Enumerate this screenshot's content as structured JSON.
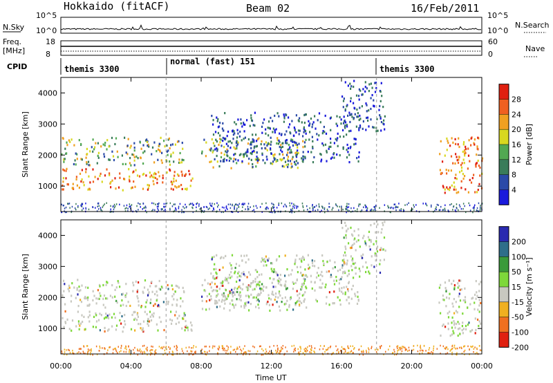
{
  "header": {
    "radar": "Hokkaido (fitACF)",
    "beam": "Beam 02",
    "date": "16/Feb/2011"
  },
  "noise_panel": {
    "left_label": "N.Sky",
    "left_ticks": [
      "10^5",
      "10^0"
    ],
    "right_label": "N.Search",
    "right_ticks": [
      "10^5",
      "10^0"
    ]
  },
  "freq_panel": {
    "left_label_line1": "Freq.",
    "left_label_line2": "[MHz]",
    "left_ticks": [
      "18",
      "8"
    ],
    "right_label": "Nave",
    "right_ticks": [
      "60",
      "0"
    ]
  },
  "cpid": {
    "label": "CPID",
    "modes": [
      {
        "name": "themis 3300",
        "start_hour": 0
      },
      {
        "name": "normal (fast) 151",
        "start_hour": 6
      },
      {
        "name": "themis 3300",
        "start_hour": 18
      }
    ]
  },
  "power_panel": {
    "ylabel": "Slant Range [km]",
    "yticks": [
      "1000",
      "2000",
      "3000",
      "4000"
    ],
    "colorbar_label": "Power [dB]",
    "colorbar_ticks": [
      "4",
      "8",
      "12",
      "16",
      "20",
      "24",
      "28"
    ],
    "colors": [
      "#1a1adc",
      "#2b4aa8",
      "#3a7c5a",
      "#52a852",
      "#d8d820",
      "#f0a020",
      "#f06020",
      "#e02010"
    ]
  },
  "velocity_panel": {
    "ylabel": "Slant Range [km]",
    "yticks": [
      "1000",
      "2000",
      "3000",
      "4000"
    ],
    "colorbar_label": "Velocity [m s⁻¹]",
    "colorbar_ticks": [
      "200",
      "100",
      "50",
      "15",
      "-15",
      "-50",
      "-100",
      "-200"
    ],
    "colors": [
      "#2a2ab0",
      "#2e6e8a",
      "#3a9a3a",
      "#7ed83a",
      "#c8c8c0",
      "#f0b020",
      "#f07020",
      "#e02010"
    ]
  },
  "xaxis": {
    "label": "Time UT",
    "ticks": [
      "00:00",
      "04:00",
      "08:00",
      "12:00",
      "16:00",
      "20:00",
      "00:00"
    ]
  },
  "chart_data": {
    "type": "heatmap",
    "x_range_hours": [
      0,
      24
    ],
    "y_range_km": [
      180,
      4500
    ],
    "power_bands": [
      {
        "t0": 0,
        "t1": 7.5,
        "r0": 900,
        "r1": 1600,
        "level": "high"
      },
      {
        "t0": 0,
        "t1": 7,
        "r0": 1700,
        "r1": 2600,
        "level": "mid"
      },
      {
        "t0": 8,
        "t1": 14,
        "r0": 1600,
        "r1": 2600,
        "level": "mid"
      },
      {
        "t0": 8.5,
        "t1": 17,
        "r0": 1800,
        "r1": 3400,
        "level": "low"
      },
      {
        "t0": 16,
        "t1": 18.5,
        "r0": 2800,
        "r1": 4500,
        "level": "low"
      },
      {
        "t0": 21.5,
        "t1": 24,
        "r0": 800,
        "r1": 2600,
        "level": "high"
      }
    ]
  }
}
